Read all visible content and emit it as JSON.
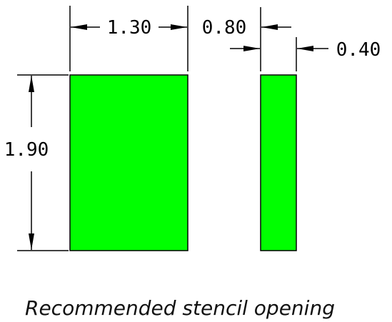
{
  "dimensions": {
    "large_width": "1.30",
    "small_gap": "0.80",
    "small_width": "0.40",
    "height": "1.90"
  },
  "caption": "Recommended stencil opening",
  "colors": {
    "pad_fill": "#00ff00",
    "line": "#000000"
  }
}
